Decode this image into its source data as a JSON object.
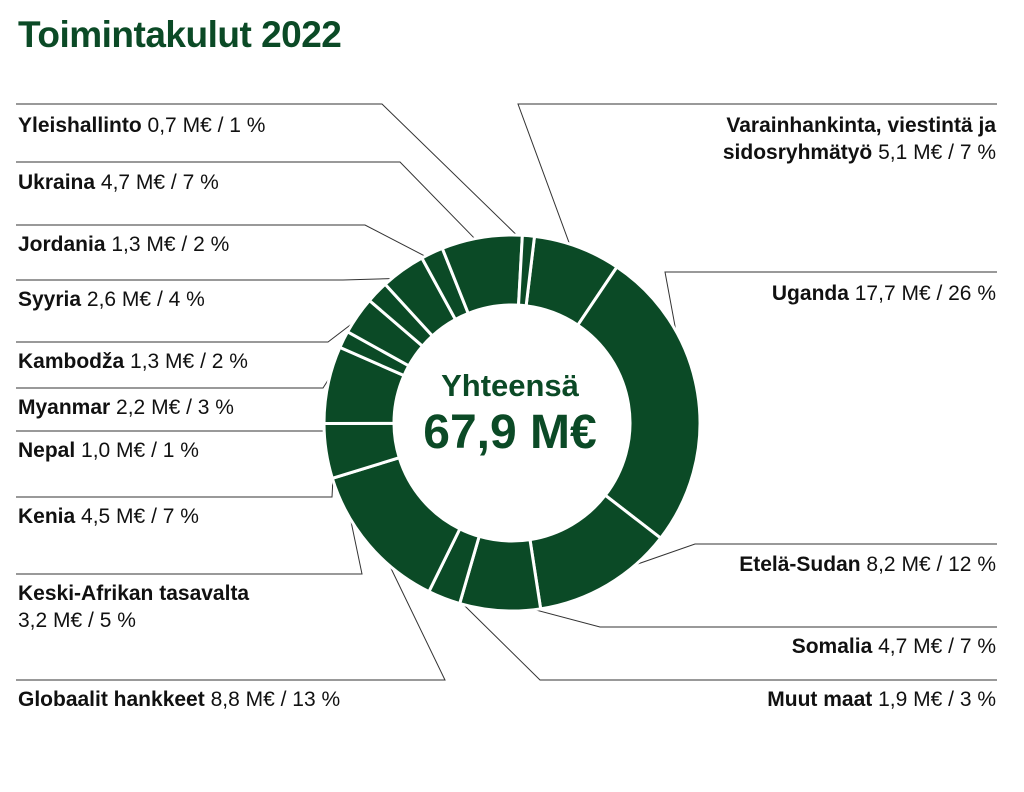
{
  "title": "Toimintakulut 2022",
  "center": {
    "label": "Yhteensä",
    "value": "67,9 M€"
  },
  "colors": {
    "slice": "#0b4a26",
    "separator": "#ffffff",
    "leader": "#333333"
  },
  "chart_data": {
    "type": "pie",
    "donut": true,
    "title": "Toimintakulut 2022",
    "total": 67.9,
    "unit": "M€",
    "slices": [
      {
        "name": "Varainhankinta, viestintä ja sidosryhmätyö",
        "value": 5.1,
        "percent": 7,
        "name_line1": "Varainhankinta, viestintä ja",
        "name_line2": "sidosryhmätyö",
        "value_text": "5,1 M€ / 7 %"
      },
      {
        "name": "Uganda",
        "value": 17.7,
        "percent": 26,
        "value_text": "17,7 M€ / 26 %"
      },
      {
        "name": "Etelä-Sudan",
        "value": 8.2,
        "percent": 12,
        "value_text": "8,2 M€ / 12 %"
      },
      {
        "name": "Somalia",
        "value": 4.7,
        "percent": 7,
        "value_text": "4,7 M€ / 7 %"
      },
      {
        "name": "Muut maat",
        "value": 1.9,
        "percent": 3,
        "value_text": "1,9 M€ / 3 %"
      },
      {
        "name": "Globaalit hankkeet",
        "value": 8.8,
        "percent": 13,
        "value_text": "8,8 M€ / 13 %"
      },
      {
        "name": "Keski-Afrikan tasavalta",
        "value": 3.2,
        "percent": 5,
        "value_text": "3,2 M€ / 5 %"
      },
      {
        "name": "Kenia",
        "value": 4.5,
        "percent": 7,
        "value_text": "4,5 M€ / 7 %"
      },
      {
        "name": "Nepal",
        "value": 1.0,
        "percent": 1,
        "value_text": "1,0 M€ / 1 %"
      },
      {
        "name": "Myanmar",
        "value": 2.2,
        "percent": 3,
        "value_text": "2,2 M€ / 3 %"
      },
      {
        "name": "Kambodža",
        "value": 1.3,
        "percent": 2,
        "value_text": "1,3 M€ / 2 %"
      },
      {
        "name": "Syyria",
        "value": 2.6,
        "percent": 4,
        "value_text": "2,6 M€ / 4 %"
      },
      {
        "name": "Jordania",
        "value": 1.3,
        "percent": 2,
        "value_text": "1,3 M€ / 2 %"
      },
      {
        "name": "Ukraina",
        "value": 4.7,
        "percent": 7,
        "value_text": "4,7 M€ / 7 %"
      },
      {
        "name": "Yleishallinto",
        "value": 0.7,
        "percent": 1,
        "value_text": "0,7 M€ / 1 %"
      }
    ]
  }
}
